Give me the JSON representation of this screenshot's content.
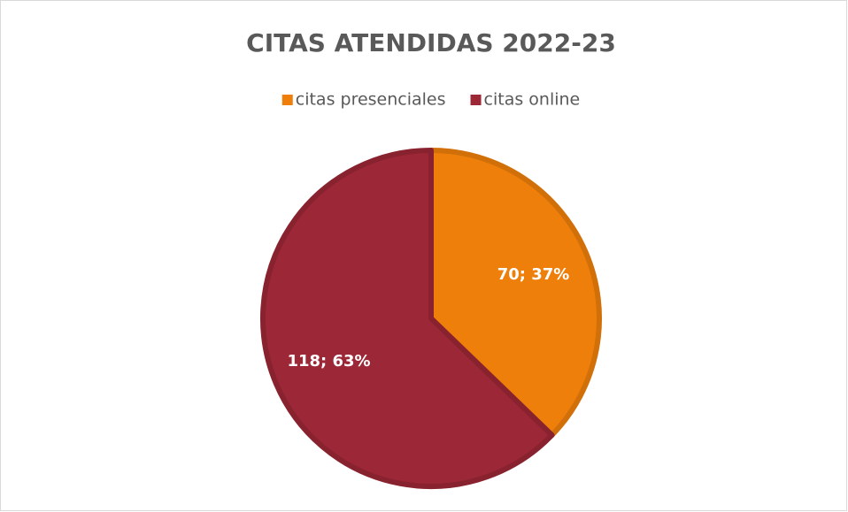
{
  "chart_data": {
    "type": "pie",
    "title": "CITAS ATENDIDAS 2022-23",
    "categories": [
      "citas presenciales",
      "citas online"
    ],
    "values": [
      70,
      118
    ],
    "value_labels": [
      "70; 37%",
      "118; 63%"
    ],
    "colors": [
      "#ee7f0b",
      "#9c2736"
    ]
  }
}
